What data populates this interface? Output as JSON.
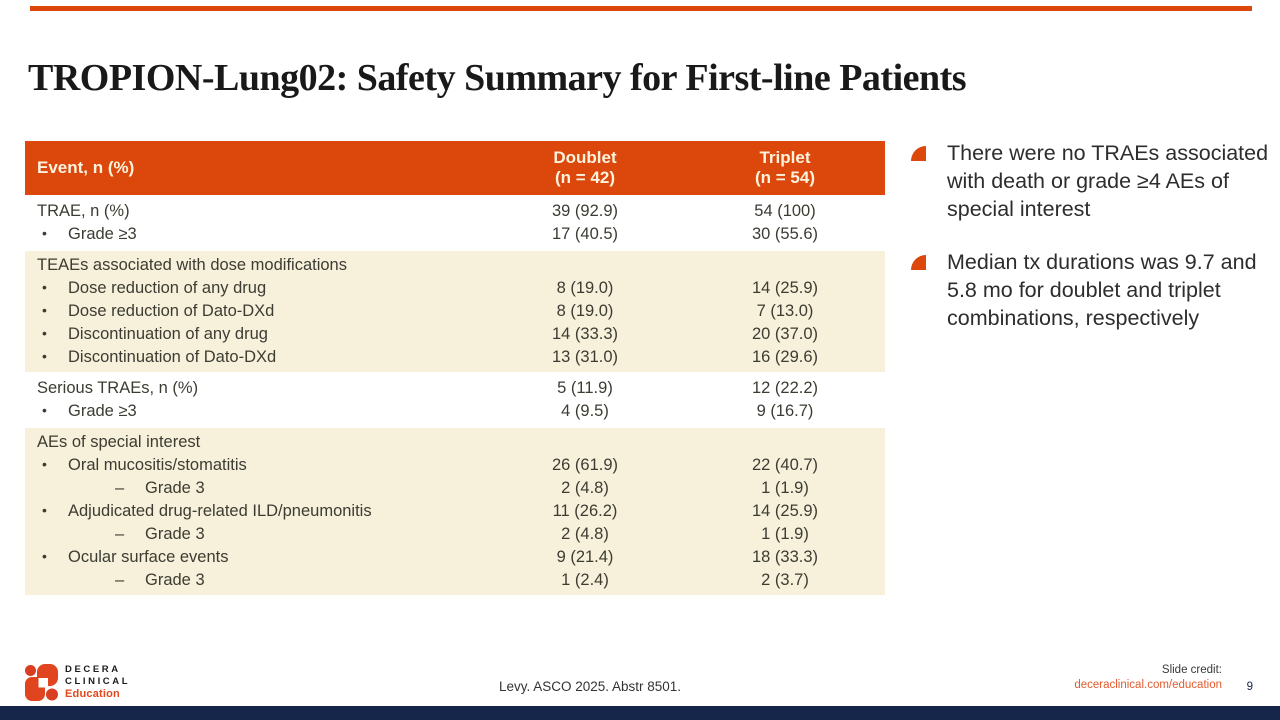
{
  "slide": {
    "title": "TROPION-Lung02: Safety Summary for First-line Patients",
    "page_number": "9"
  },
  "table": {
    "header": {
      "event": "Event, n (%)",
      "doublet_line1": "Doublet",
      "doublet_line2": "(n = 42)",
      "triplet_line1": "Triplet",
      "triplet_line2": "(n = 54)"
    },
    "sections": [
      {
        "bg": "white",
        "rows": [
          {
            "i": 0,
            "label": "TRAE, n (%)",
            "doublet": "39 (92.9)",
            "triplet": "54 (100)"
          },
          {
            "i": 1,
            "label": "Grade ≥3",
            "doublet": "17 (40.5)",
            "triplet": "30 (55.6)"
          }
        ]
      },
      {
        "bg": "cream",
        "rows": [
          {
            "i": 0,
            "label": "TEAEs associated with dose modifications",
            "doublet": "",
            "triplet": ""
          },
          {
            "i": 1,
            "label": "Dose reduction of any drug",
            "doublet": "8 (19.0)",
            "triplet": "14 (25.9)"
          },
          {
            "i": 1,
            "label": "Dose reduction of Dato-DXd",
            "doublet": "8 (19.0)",
            "triplet": "7 (13.0)"
          },
          {
            "i": 1,
            "label": "Discontinuation of any drug",
            "doublet": "14 (33.3)",
            "triplet": "20 (37.0)"
          },
          {
            "i": 1,
            "label": "Discontinuation of Dato-DXd",
            "doublet": "13 (31.0)",
            "triplet": "16 (29.6)"
          }
        ]
      },
      {
        "bg": "white",
        "rows": [
          {
            "i": 0,
            "label": "Serious TRAEs,  n (%)",
            "doublet": "5 (11.9)",
            "triplet": "12 (22.2)"
          },
          {
            "i": 1,
            "label": "Grade ≥3",
            "doublet": "4 (9.5)",
            "triplet": "9 (16.7)"
          }
        ]
      },
      {
        "bg": "cream",
        "rows": [
          {
            "i": 0,
            "label": "AEs of special interest",
            "doublet": "",
            "triplet": ""
          },
          {
            "i": 1,
            "label": "Oral mucositis/stomatitis",
            "doublet": "26 (61.9)",
            "triplet": "22 (40.7)"
          },
          {
            "i": 2,
            "label": "Grade 3",
            "doublet": "2 (4.8)",
            "triplet": "1 (1.9)"
          },
          {
            "i": 1,
            "label": "Adjudicated drug-related ILD/pneumonitis",
            "doublet": "11 (26.2)",
            "triplet": "14 (25.9)"
          },
          {
            "i": 2,
            "label": "Grade 3",
            "doublet": "2 (4.8)",
            "triplet": "1 (1.9)"
          },
          {
            "i": 1,
            "label": "Ocular surface events",
            "doublet": "9 (21.4)",
            "triplet": "18 (33.3)"
          },
          {
            "i": 2,
            "label": "Grade 3",
            "doublet": "1 (2.4)",
            "triplet": "2 (3.7)"
          }
        ]
      }
    ]
  },
  "bullets": [
    "There were no TRAEs associated with death or grade ≥4 AEs of special interest",
    "Median tx durations was 9.7 and 5.8 mo for doublet and triplet combinations, respectively"
  ],
  "footer": {
    "logo_line1": "DECERA",
    "logo_line2": "CLINICAL",
    "logo_line3": "Education",
    "citation": "Levy. ASCO 2025. Abstr 8501.",
    "credit_label": "Slide credit:",
    "credit_link": "deceraclinical.com/education"
  },
  "colors": {
    "accent_orange": "#DC470B",
    "link_orange": "#E25B2E",
    "row_cream": "#F7F0DA",
    "bottom_navy": "#16254A"
  }
}
